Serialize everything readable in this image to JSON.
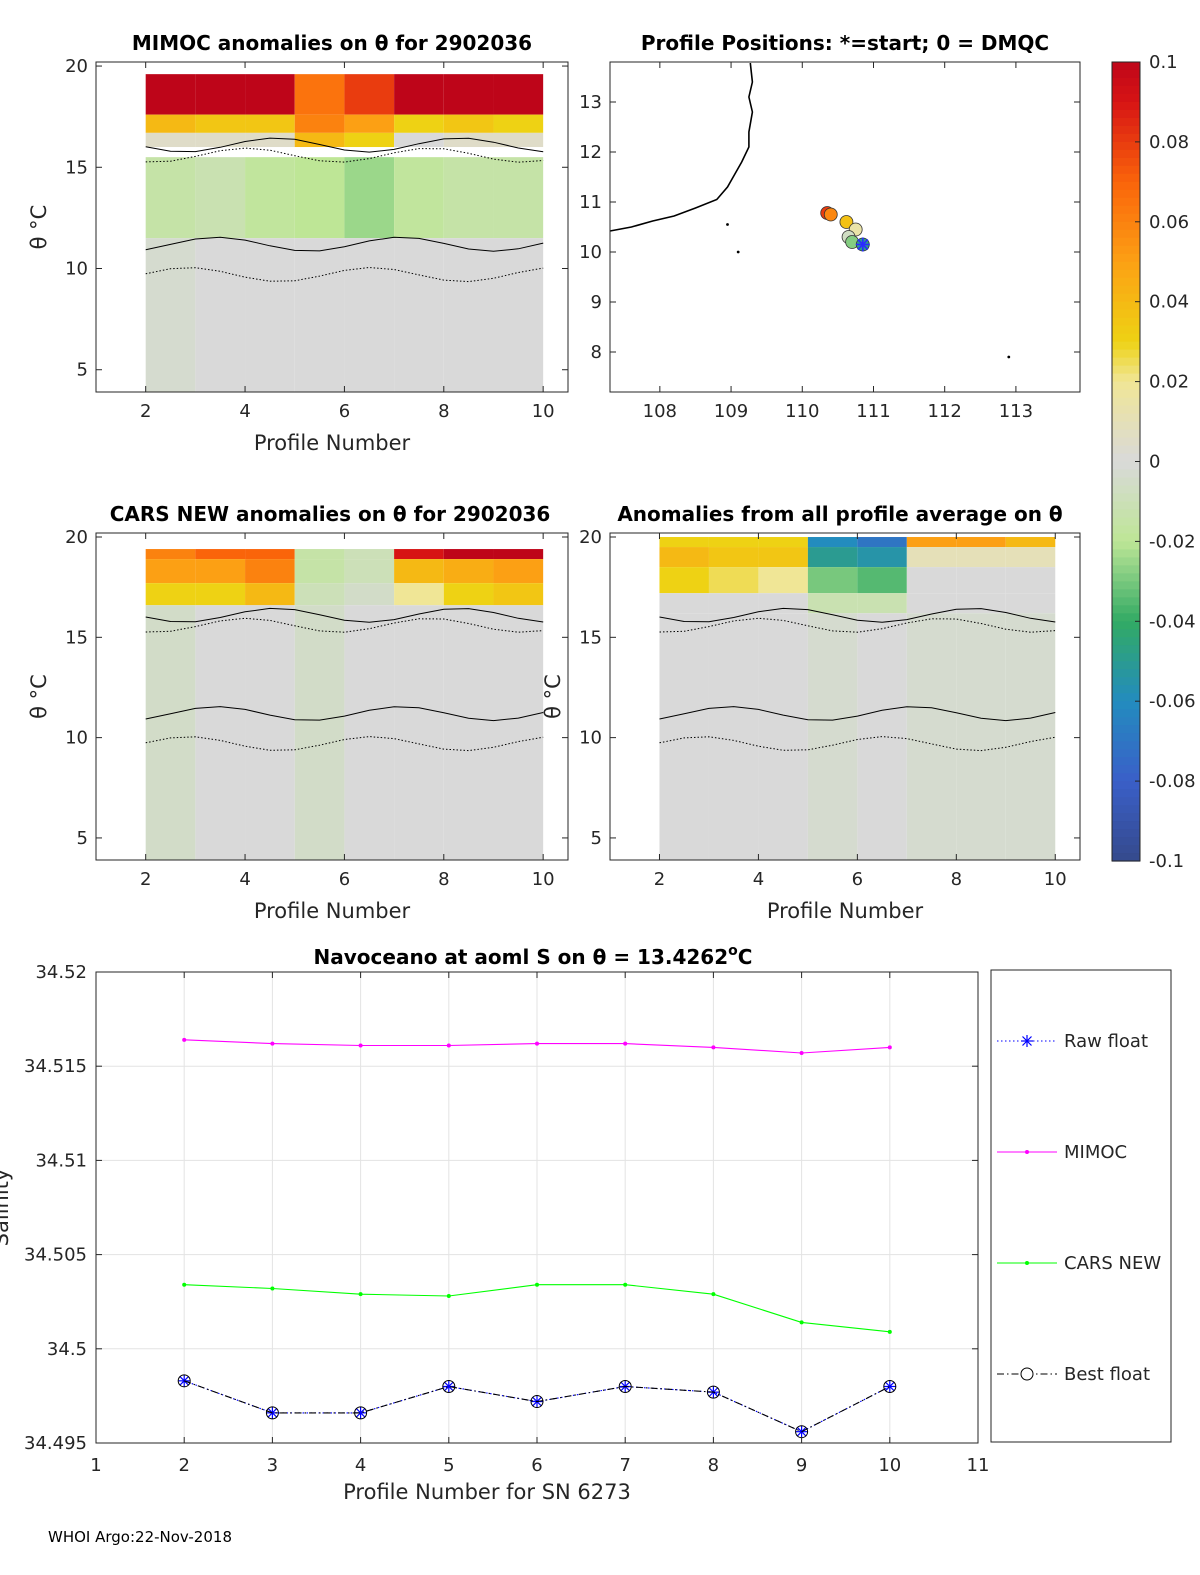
{
  "colors": {
    "grey": "#d9d9d9",
    "mimoc": "#ff00ff",
    "cars": "#00ff00",
    "raw": "#0000ff",
    "best": "#000000",
    "coast": "#000000"
  },
  "footer": "WHOI Argo:22-Nov-2018",
  "chart_data": [
    {
      "id": "mimoc",
      "type": "heatmap",
      "title": "MIMOC anomalies on θ  for 2902036",
      "xlabel": "Profile Number",
      "ylabel": "θ °C",
      "xlim": [
        1,
        10.5
      ],
      "ylim": [
        3.9,
        20.2
      ],
      "xticks": [
        "2",
        "4",
        "6",
        "8",
        "10"
      ],
      "yticks": [
        "5",
        "10",
        "15",
        "20"
      ],
      "profiles": [
        2,
        3,
        4,
        5,
        6,
        7,
        8,
        9,
        10
      ],
      "bands": [
        {
          "theta": [
            17.6,
            19.6
          ],
          "values": [
            0.1,
            0.1,
            0.1,
            0.065,
            0.08,
            0.1,
            0.1,
            0.1,
            0.1
          ]
        },
        {
          "theta": [
            16.7,
            17.6
          ],
          "values": [
            0.04,
            0.035,
            0.035,
            0.06,
            0.05,
            0.03,
            0.035,
            0.03,
            0.04
          ]
        },
        {
          "theta": [
            16.0,
            16.7
          ],
          "values": [
            0.005,
            0.005,
            0.005,
            0.04,
            0.03,
            0.0,
            0.005,
            0.005,
            0.005
          ]
        },
        {
          "theta": [
            11.5,
            15.5
          ],
          "values": [
            -0.015,
            -0.012,
            -0.018,
            -0.02,
            -0.025,
            -0.018,
            -0.015,
            -0.015,
            -0.015
          ]
        },
        {
          "theta": [
            3.9,
            11.5
          ],
          "values": [
            -0.003,
            0,
            0,
            0,
            0,
            0,
            0,
            0,
            0
          ]
        }
      ]
    },
    {
      "id": "positions",
      "type": "scatter",
      "title": "Profile Positions: *=start; 0 = DMQC",
      "xlim": [
        107.3,
        113.9
      ],
      "ylim": [
        7.2,
        13.8
      ],
      "xticks": [
        "108",
        "109",
        "110",
        "111",
        "112",
        "113"
      ],
      "yticks": [
        "8",
        "9",
        "10",
        "11",
        "12",
        "13"
      ],
      "points": [
        {
          "lon": 110.85,
          "lat": 10.15
        },
        {
          "lon": 110.7,
          "lat": 10.2
        },
        {
          "lon": 110.65,
          "lat": 10.3
        },
        {
          "lon": 110.75,
          "lat": 10.45
        },
        {
          "lon": 110.62,
          "lat": 10.6
        },
        {
          "lon": 110.4,
          "lat": 10.75
        },
        {
          "lon": 110.35,
          "lat": 10.78
        }
      ]
    },
    {
      "id": "cars",
      "type": "heatmap",
      "title": "CARS NEW anomalies on θ for 2902036",
      "xlabel": "Profile Number",
      "ylabel": "θ °C",
      "xlim": [
        1,
        10.5
      ],
      "ylim": [
        3.9,
        20.2
      ],
      "xticks": [
        "2",
        "4",
        "6",
        "8",
        "10"
      ],
      "yticks": [
        "5",
        "10",
        "15",
        "20"
      ],
      "profiles": [
        2,
        3,
        4,
        5,
        6,
        7,
        8,
        9,
        10
      ],
      "bands": [
        {
          "theta": [
            18.9,
            19.4
          ],
          "values": [
            0.06,
            0.07,
            0.07,
            -0.015,
            -0.01,
            0.09,
            0.1,
            0.1,
            0.09
          ]
        },
        {
          "theta": [
            17.7,
            18.9
          ],
          "values": [
            0.05,
            0.05,
            0.06,
            -0.015,
            -0.01,
            0.04,
            0.045,
            0.05,
            0.05
          ]
        },
        {
          "theta": [
            16.6,
            17.7
          ],
          "values": [
            0.03,
            0.03,
            0.04,
            -0.01,
            -0.005,
            0.02,
            0.03,
            0.035,
            0.035
          ]
        },
        {
          "theta": [
            3.9,
            16.6
          ],
          "values": [
            -0.005,
            0,
            0,
            -0.005,
            0,
            0,
            0,
            0,
            0
          ]
        }
      ]
    },
    {
      "id": "allavg",
      "type": "heatmap",
      "title": "Anomalies from all profile average on θ",
      "xlabel": "Profile Number",
      "ylabel": "θ °C",
      "xlim": [
        1,
        10.5
      ],
      "ylim": [
        3.9,
        20.2
      ],
      "xticks": [
        "2",
        "4",
        "6",
        "8",
        "10"
      ],
      "yticks": [
        "5",
        "10",
        "15",
        "20"
      ],
      "profiles": [
        2,
        3,
        4,
        5,
        6,
        7,
        8,
        9,
        10
      ],
      "bands": [
        {
          "theta": [
            19.5,
            20.0
          ],
          "values": [
            0.03,
            0.03,
            0.03,
            -0.06,
            -0.07,
            0.05,
            0.05,
            0.04,
            0.02
          ]
        },
        {
          "theta": [
            18.5,
            19.5
          ],
          "values": [
            0.04,
            0.035,
            0.035,
            -0.05,
            -0.055,
            0.01,
            0.01,
            0.01,
            0.005
          ]
        },
        {
          "theta": [
            17.2,
            18.5
          ],
          "values": [
            0.03,
            0.025,
            0.02,
            -0.03,
            -0.035,
            0,
            0,
            0,
            0
          ]
        },
        {
          "theta": [
            16.2,
            17.2
          ],
          "values": [
            0,
            0,
            0,
            -0.012,
            -0.012,
            0,
            0,
            0,
            0
          ]
        },
        {
          "theta": [
            3.9,
            16.2
          ],
          "values": [
            0,
            0,
            0,
            -0.003,
            0,
            -0.003,
            -0.003,
            -0.003,
            0
          ]
        }
      ]
    },
    {
      "id": "colorbar",
      "type": "colorbar",
      "range": [
        -0.1,
        0.1
      ],
      "ticks": [
        "0.1",
        "0.08",
        "0.06",
        "0.04",
        "0.02",
        "0",
        "-0.02",
        "-0.04",
        "-0.06",
        "-0.08",
        "-0.1"
      ]
    },
    {
      "id": "salinity",
      "type": "line",
      "title_main": "Navoceano at aoml S on θ = 13.4262",
      "title_sup": "o",
      "title_tail": "C",
      "xlabel": "Profile Number for SN 6273",
      "ylabel": "Salinity",
      "xlim": [
        1,
        11
      ],
      "ylim": [
        34.495,
        34.52
      ],
      "xticks": [
        "1",
        "2",
        "3",
        "4",
        "5",
        "6",
        "7",
        "8",
        "9",
        "10",
        "11"
      ],
      "yticks": [
        "34.495",
        "34.5",
        "34.505",
        "34.51",
        "34.515",
        "34.52"
      ],
      "x": [
        2,
        3,
        4,
        5,
        6,
        7,
        8,
        9,
        10
      ],
      "series": [
        {
          "name": "MIMOC",
          "values": [
            34.5164,
            34.5162,
            34.5161,
            34.5161,
            34.5162,
            34.5162,
            34.516,
            34.5157,
            34.516
          ]
        },
        {
          "name": "CARS NEW",
          "values": [
            34.5034,
            34.5032,
            34.5029,
            34.5028,
            34.5034,
            34.5034,
            34.5029,
            34.5014,
            34.5009
          ]
        },
        {
          "name": "Raw float",
          "values": [
            34.4983,
            34.4966,
            34.4966,
            34.498,
            34.4972,
            34.498,
            34.4977,
            34.4956,
            34.498
          ]
        },
        {
          "name": "Best float",
          "values": [
            34.4983,
            34.4966,
            34.4966,
            34.498,
            34.4972,
            34.498,
            34.4977,
            34.4956,
            34.498
          ]
        }
      ],
      "legend": [
        "Raw float",
        "MIMOC",
        "CARS NEW",
        "Best float"
      ]
    }
  ]
}
